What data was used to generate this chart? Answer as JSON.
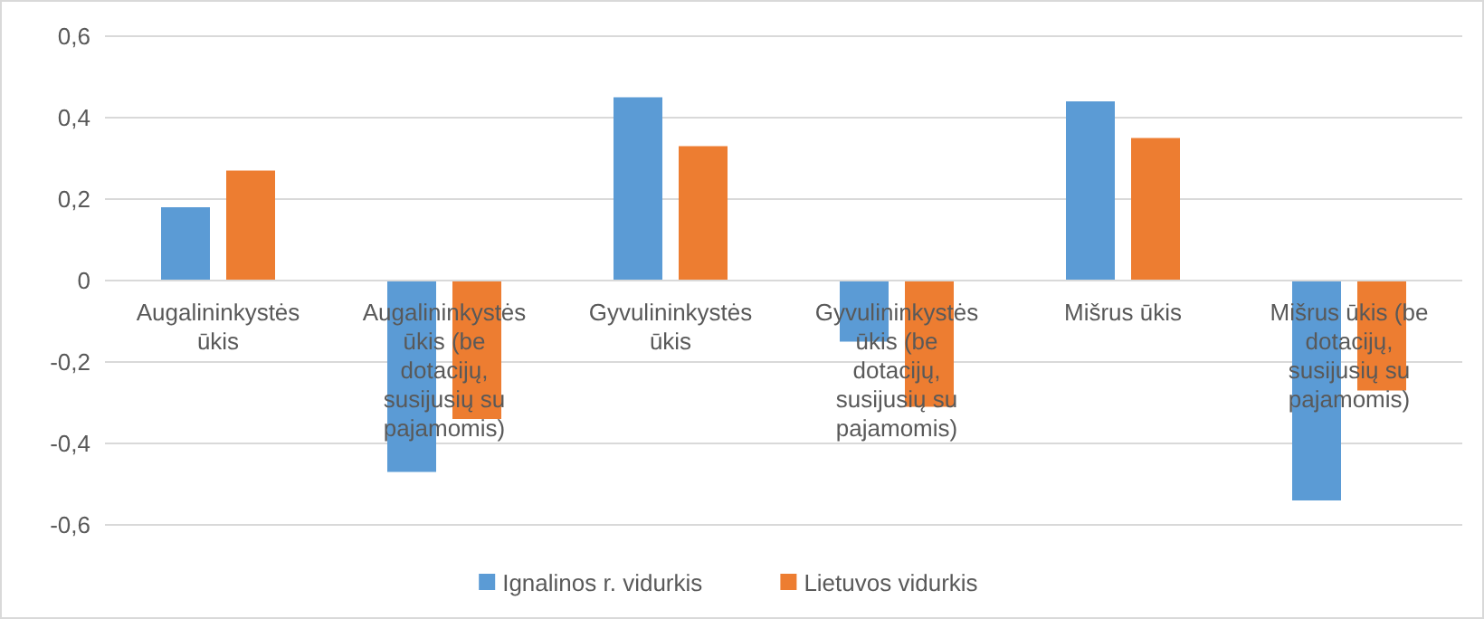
{
  "chart_data": {
    "type": "bar",
    "categories": [
      "Augalininkystės ūkis",
      "Augalininkystės ūkis (be dotacijų, susijusių su pajamomis)",
      "Gyvulininkystės ūkis",
      "Gyvulininkystės ūkis (be dotacijų, susijusių su pajamomis)",
      "Mišrus ūkis",
      "Mišrus ūkis (be dotacijų, susijusių su pajamomis)"
    ],
    "series": [
      {
        "name": "Ignalinos r. vidurkis",
        "color": "#5b9bd5",
        "values": [
          0.18,
          -0.47,
          0.45,
          -0.15,
          0.44,
          -0.54
        ]
      },
      {
        "name": "Lietuvos vidurkis",
        "color": "#ed7d31",
        "values": [
          0.27,
          -0.34,
          0.33,
          -0.31,
          0.35,
          -0.27
        ]
      }
    ],
    "ylim": [
      -0.6,
      0.6
    ],
    "yticks": [
      {
        "value": -0.6,
        "label": "-0,6"
      },
      {
        "value": -0.4,
        "label": "-0,4"
      },
      {
        "value": -0.2,
        "label": "-0,2"
      },
      {
        "value": 0,
        "label": "0"
      },
      {
        "value": 0.2,
        "label": "0,2"
      },
      {
        "value": 0.4,
        "label": "0,4"
      },
      {
        "value": 0.6,
        "label": "0,6"
      }
    ],
    "grid": "y",
    "legend": "bottom"
  }
}
